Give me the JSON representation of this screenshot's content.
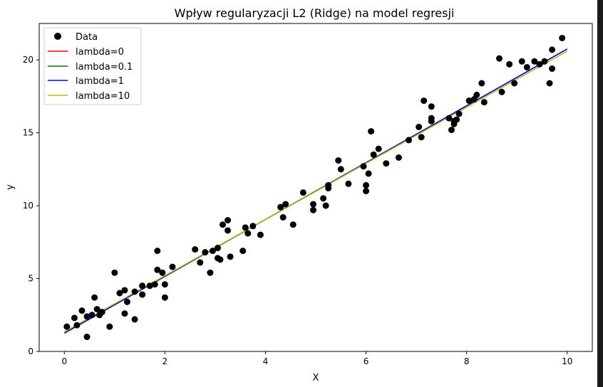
{
  "chart_data": {
    "type": "scatter",
    "title": "Wpływ regularyzacji L2 (Ridge) na model regresji",
    "xlabel": "X",
    "ylabel": "y",
    "xlim": [
      -0.5,
      10.5
    ],
    "ylim": [
      0,
      22.5
    ],
    "xticks": [
      0,
      2,
      4,
      6,
      8,
      10
    ],
    "yticks": [
      0,
      5,
      10,
      15,
      20
    ],
    "grid": false,
    "legend": "top-left",
    "scatter": {
      "name": "Data",
      "color": "#000000",
      "points": [
        [
          0.05,
          1.7
        ],
        [
          0.2,
          2.3
        ],
        [
          0.25,
          1.8
        ],
        [
          0.35,
          2.8
        ],
        [
          0.45,
          1.0
        ],
        [
          0.45,
          2.4
        ],
        [
          0.55,
          2.5
        ],
        [
          0.6,
          3.7
        ],
        [
          0.65,
          2.9
        ],
        [
          0.7,
          2.5
        ],
        [
          0.75,
          2.7
        ],
        [
          0.9,
          1.7
        ],
        [
          1.0,
          5.4
        ],
        [
          1.1,
          4.0
        ],
        [
          1.2,
          4.2
        ],
        [
          1.2,
          2.6
        ],
        [
          1.25,
          3.4
        ],
        [
          1.4,
          4.1
        ],
        [
          1.4,
          2.2
        ],
        [
          1.55,
          3.9
        ],
        [
          1.55,
          4.5
        ],
        [
          1.7,
          4.5
        ],
        [
          1.8,
          4.6
        ],
        [
          1.85,
          5.6
        ],
        [
          1.85,
          6.9
        ],
        [
          1.95,
          5.4
        ],
        [
          2.0,
          4.6
        ],
        [
          2.0,
          3.7
        ],
        [
          2.15,
          5.8
        ],
        [
          2.6,
          7.0
        ],
        [
          2.7,
          6.1
        ],
        [
          2.8,
          6.8
        ],
        [
          2.9,
          5.4
        ],
        [
          2.95,
          6.9
        ],
        [
          3.05,
          6.4
        ],
        [
          3.05,
          7.1
        ],
        [
          3.1,
          6.3
        ],
        [
          3.15,
          8.7
        ],
        [
          3.25,
          8.3
        ],
        [
          3.25,
          9.0
        ],
        [
          3.3,
          6.5
        ],
        [
          3.55,
          6.9
        ],
        [
          3.6,
          8.5
        ],
        [
          3.65,
          8.1
        ],
        [
          3.75,
          8.6
        ],
        [
          3.9,
          8.0
        ],
        [
          4.3,
          9.9
        ],
        [
          4.35,
          9.2
        ],
        [
          4.4,
          10.1
        ],
        [
          4.55,
          8.7
        ],
        [
          4.75,
          10.9
        ],
        [
          4.95,
          10.1
        ],
        [
          4.95,
          9.7
        ],
        [
          5.15,
          10.5
        ],
        [
          5.2,
          10.0
        ],
        [
          5.25,
          11.2
        ],
        [
          5.25,
          11.4
        ],
        [
          5.45,
          13.1
        ],
        [
          5.5,
          12.5
        ],
        [
          5.65,
          11.5
        ],
        [
          5.95,
          12.7
        ],
        [
          6.0,
          11.4
        ],
        [
          6.0,
          11.0
        ],
        [
          6.05,
          12.2
        ],
        [
          6.1,
          15.1
        ],
        [
          6.15,
          13.5
        ],
        [
          6.25,
          13.9
        ],
        [
          6.4,
          12.9
        ],
        [
          6.65,
          13.3
        ],
        [
          6.85,
          14.5
        ],
        [
          7.05,
          15.4
        ],
        [
          7.1,
          14.7
        ],
        [
          7.15,
          17.2
        ],
        [
          7.3,
          15.8
        ],
        [
          7.3,
          16.0
        ],
        [
          7.3,
          16.8
        ],
        [
          7.65,
          16.0
        ],
        [
          7.7,
          15.2
        ],
        [
          7.75,
          15.6
        ],
        [
          7.75,
          15.8
        ],
        [
          7.8,
          15.9
        ],
        [
          7.85,
          16.3
        ],
        [
          8.05,
          17.2
        ],
        [
          8.15,
          17.3
        ],
        [
          8.2,
          17.6
        ],
        [
          8.3,
          18.4
        ],
        [
          8.35,
          17.1
        ],
        [
          8.65,
          20.1
        ],
        [
          8.7,
          17.8
        ],
        [
          8.85,
          19.7
        ],
        [
          8.95,
          18.4
        ],
        [
          9.1,
          19.9
        ],
        [
          9.2,
          19.5
        ],
        [
          9.35,
          19.9
        ],
        [
          9.45,
          19.7
        ],
        [
          9.55,
          19.9
        ],
        [
          9.65,
          18.4
        ],
        [
          9.7,
          19.4
        ],
        [
          9.7,
          20.7
        ],
        [
          9.9,
          21.5
        ]
      ]
    },
    "series": [
      {
        "name": "lambda=0",
        "color": "#ff0000",
        "x": [
          0,
          10
        ],
        "y": [
          1.25,
          20.75
        ]
      },
      {
        "name": "lambda=0.1",
        "color": "#008000",
        "x": [
          0,
          10
        ],
        "y": [
          1.25,
          20.75
        ]
      },
      {
        "name": "lambda=1",
        "color": "#0000ff",
        "x": [
          0,
          10
        ],
        "y": [
          1.25,
          20.75
        ]
      },
      {
        "name": "lambda=10",
        "color": "#bfbf00",
        "x": [
          0,
          10
        ],
        "y": [
          1.35,
          20.6
        ]
      }
    ]
  }
}
